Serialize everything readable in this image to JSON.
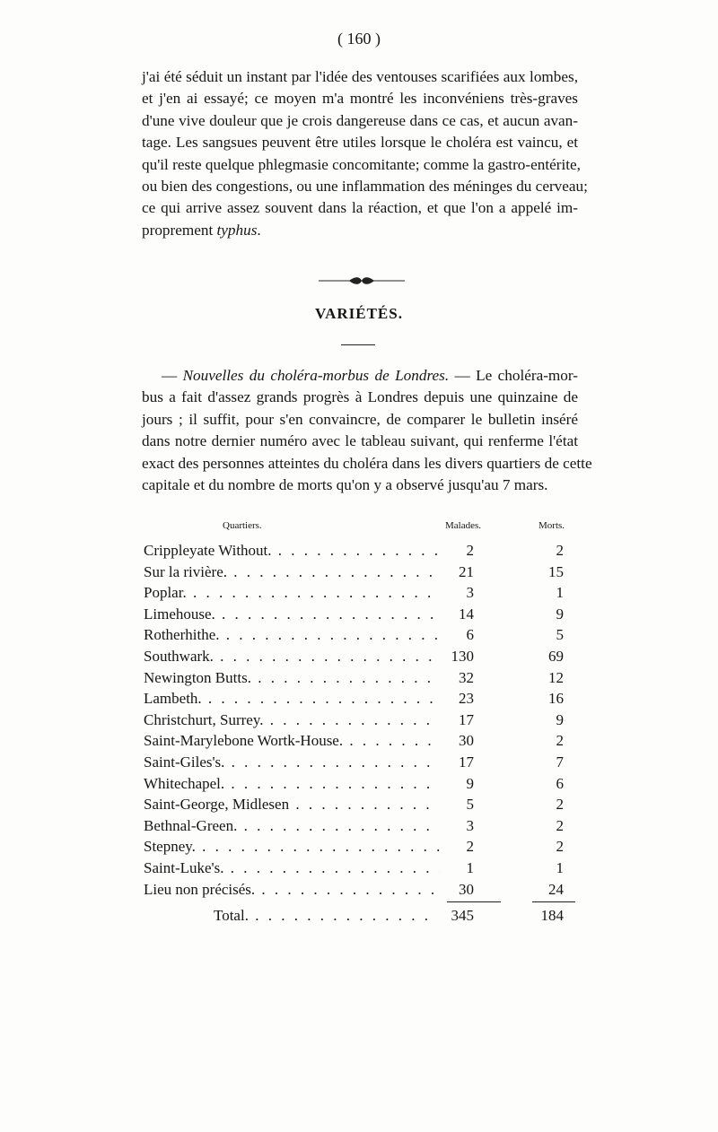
{
  "page_number": "( 160 )",
  "paragraph1": [
    "j'ai été séduit un instant par l'idée des ventouses scarifiées aux lombes,",
    "et j'en ai essayé; ce moyen m'a montré les inconvéniens très-graves",
    "d'une vive douleur que je crois dangereuse dans ce cas, et aucun avan-",
    "tage. Les sangsues peuvent être utiles lorsque le choléra est vaincu, et",
    "qu'il reste quelque phlegmasie concomitante; comme la gastro-entérite,",
    "ou bien des congestions, ou une inflammation des méninges du cerveau;",
    "ce qui arrive assez souvent dans la réaction, et que l'on a appelé im-"
  ],
  "paragraph1_last_prefix": "proprement ",
  "paragraph1_last_italic": "typhus",
  "paragraph1_last_suffix": ".",
  "section_heading": "VARIÉTÉS.",
  "paragraph2_lead_dash": "— ",
  "paragraph2_italic_title": "Nouvelles du choléra-morbus de Londres.",
  "paragraph2_first_rest": " — Le choléra-mor-",
  "paragraph2": [
    "bus a fait d'assez grands progrès à Londres depuis une quinzaine de",
    "jours ; il suffit, pour s'en convaincre, de comparer le bulletin inséré",
    "dans notre dernier numéro avec le tableau suivant, qui renferme l'état",
    "exact des personnes atteintes du choléra dans les divers quartiers de cette",
    "capitale et du nombre de morts qu'on y a observé jusqu'au 7 mars."
  ],
  "table": {
    "headers": {
      "quartiers": "Quartiers.",
      "malades": "Malades.",
      "morts": "Morts."
    },
    "rows": [
      {
        "quartier": "Crippleyate Without.",
        "malades": "2",
        "morts": "2"
      },
      {
        "quartier": "Sur la rivière.",
        "malades": "21",
        "morts": "15"
      },
      {
        "quartier": "Poplar.",
        "malades": "3",
        "morts": "1"
      },
      {
        "quartier": "Limehouse.",
        "malades": "14",
        "morts": "9"
      },
      {
        "quartier": "Rotherhithe.",
        "malades": "6",
        "morts": "5"
      },
      {
        "quartier": "Southwark.",
        "malades": "130",
        "morts": "69"
      },
      {
        "quartier": "Newington Butts.",
        "malades": "32",
        "morts": "12"
      },
      {
        "quartier": "Lambeth.",
        "malades": "23",
        "morts": "16"
      },
      {
        "quartier": "Christchurt, Surrey.",
        "malades": "17",
        "morts": "9"
      },
      {
        "quartier": "Saint-Marylebone Wortk-House.",
        "malades": "30",
        "morts": "2"
      },
      {
        "quartier": "Saint-Giles's.",
        "malades": "17",
        "morts": "7"
      },
      {
        "quartier": "Whitechapel.",
        "malades": "9",
        "morts": "6"
      },
      {
        "quartier": "Saint-George, Midlesen",
        "malades": "5",
        "morts": "2"
      },
      {
        "quartier": "Bethnal-Green.",
        "malades": "3",
        "morts": "2"
      },
      {
        "quartier": "Stepney.",
        "malades": "2",
        "morts": "2"
      },
      {
        "quartier": "Saint-Luke's.",
        "malades": "1",
        "morts": "1"
      },
      {
        "quartier": "Lieu non précisés.",
        "malades": "30",
        "morts": "24"
      }
    ],
    "total": {
      "label": "Total.",
      "malades": "345",
      "morts": "184"
    }
  }
}
